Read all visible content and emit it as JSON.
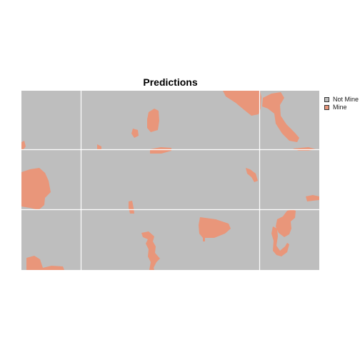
{
  "plot": {
    "title": "Predictions"
  },
  "legend": {
    "items": [
      {
        "label": "Not Mine",
        "color": "#bebebe"
      },
      {
        "label": "Mine",
        "color": "#e9967a"
      }
    ]
  },
  "colors": {
    "background": "#bebebe",
    "mine": "#e9967a",
    "tile_border": "#ffffff"
  }
}
